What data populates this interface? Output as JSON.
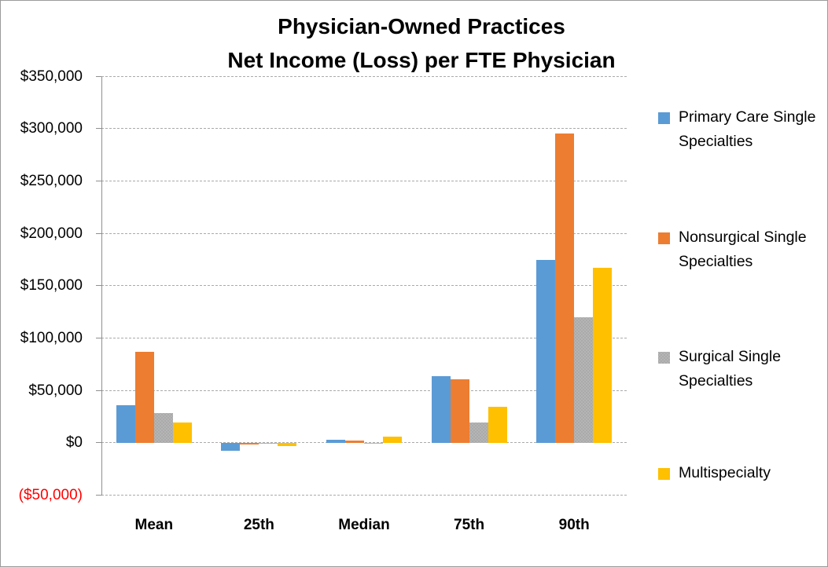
{
  "title": {
    "line1": "Physician-Owned Practices",
    "line2": "Net Income (Loss) per FTE Physician"
  },
  "chart_data": {
    "type": "bar",
    "title": "Physician-Owned Practices Net Income (Loss) per FTE Physician",
    "categories": [
      "Mean",
      "25th",
      "Median",
      "75th",
      "90th"
    ],
    "series": [
      {
        "name": "Primary Care Single Specialties",
        "color": "#5B9BD5",
        "fill": "solid",
        "values": [
          36000,
          -7000,
          3000,
          64000,
          175000
        ]
      },
      {
        "name": "Nonsurgical Single Specialties",
        "color": "#ED7D31",
        "fill": "solid",
        "values": [
          87000,
          -1000,
          2500,
          61000,
          296000
        ]
      },
      {
        "name": "Surgical Single Specialties",
        "color": "#A5A5A5",
        "fill": "dotted-pattern",
        "values": [
          28500,
          -500,
          500,
          20000,
          120000
        ]
      },
      {
        "name": "Multispecialty",
        "color": "#FFC000",
        "fill": "solid",
        "values": [
          19500,
          -2500,
          6000,
          34500,
          167500
        ]
      }
    ],
    "y_axis": {
      "min": -50000,
      "max": 350000,
      "step": 50000,
      "tick_labels": [
        "$350,000",
        "$300,000",
        "$250,000",
        "$200,000",
        "$150,000",
        "$100,000",
        "$50,000",
        "$0",
        "($50,000)"
      ],
      "negative_tick_color": "#FF0000"
    },
    "ylim": [
      -50000,
      350000
    ],
    "grid": true,
    "legend_position": "right"
  }
}
